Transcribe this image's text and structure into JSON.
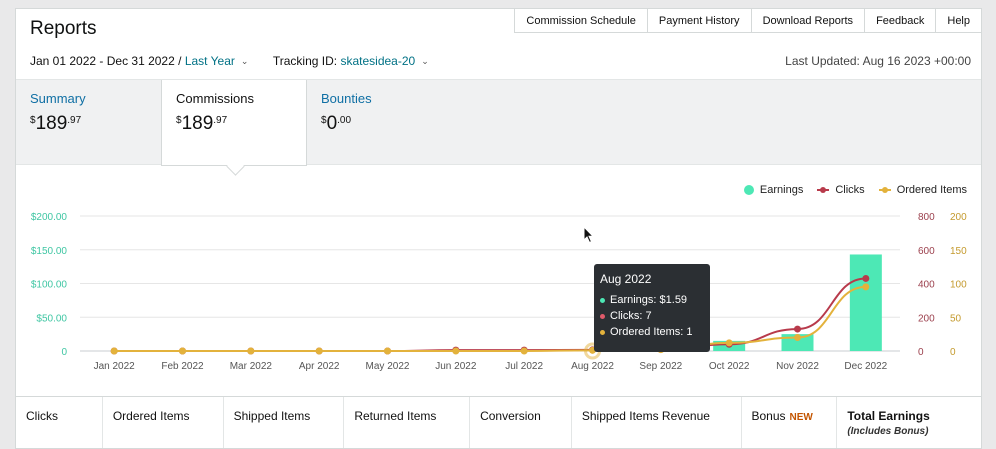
{
  "header": {
    "title": "Reports",
    "nav": [
      "Commission Schedule",
      "Payment History",
      "Download Reports",
      "Feedback",
      "Help"
    ]
  },
  "filters": {
    "date_range": "Jan 01 2022 - Dec 31 2022",
    "separator": "/",
    "period": "Last Year",
    "tracking_label": "Tracking ID:",
    "tracking_id": "skatesidea-20"
  },
  "last_updated": "Last Updated: Aug 16 2023 +00:00",
  "tabs": [
    {
      "label": "Summary",
      "dollar": "$",
      "whole": "189",
      "cents": ".97",
      "active": false
    },
    {
      "label": "Commissions",
      "dollar": "$",
      "whole": "189",
      "cents": ".97",
      "active": true
    },
    {
      "label": "Bounties",
      "dollar": "$",
      "whole": "0",
      "cents": ".00",
      "active": false
    }
  ],
  "legend": {
    "earnings": "Earnings",
    "clicks": "Clicks",
    "ordered": "Ordered Items"
  },
  "colors": {
    "earnings": "#4de8b5",
    "clicks": "#b83a4b",
    "ordered": "#e3b23c",
    "link": "#007185"
  },
  "chart_data": {
    "type": "bar",
    "categories": [
      "Jan 2022",
      "Feb 2022",
      "Mar 2022",
      "Apr 2022",
      "May 2022",
      "Jun 2022",
      "Jul 2022",
      "Aug 2022",
      "Sep 2022",
      "Oct 2022",
      "Nov 2022",
      "Dec 2022"
    ],
    "y_left_ticks": [
      "$200.00",
      "$150.00",
      "$100.00",
      "$50.00",
      "0"
    ],
    "y_mid_ticks": [
      "800",
      "600",
      "400",
      "200",
      "0"
    ],
    "y_right_ticks": [
      "200",
      "150",
      "100",
      "50",
      "0"
    ],
    "series": [
      {
        "name": "Earnings",
        "type": "bar",
        "axis": "left",
        "values": [
          0,
          0,
          0,
          0,
          0,
          0,
          0,
          1.59,
          2,
          15,
          25,
          143
        ]
      },
      {
        "name": "Clicks",
        "type": "line",
        "axis": "mid",
        "values": [
          0,
          0,
          0,
          0,
          0,
          5,
          5,
          7,
          10,
          40,
          130,
          430
        ]
      },
      {
        "name": "Ordered Items",
        "type": "line",
        "axis": "right",
        "values": [
          0,
          0,
          0,
          0,
          0,
          0,
          0,
          1,
          2,
          12,
          20,
          95
        ]
      }
    ],
    "ylim_left": [
      0,
      200
    ],
    "ylim_mid": [
      0,
      800
    ],
    "ylim_right": [
      0,
      200
    ],
    "legend_position": "top-right"
  },
  "tooltip": {
    "title": "Aug 2022",
    "rows": [
      "Earnings: $1.59",
      "Clicks: 7",
      "Ordered Items: 1"
    ]
  },
  "table_columns": {
    "clicks": "Clicks",
    "ordered": "Ordered Items",
    "shipped": "Shipped Items",
    "returned": "Returned Items",
    "conversion": "Conversion",
    "revenue": "Shipped Items Revenue",
    "bonus": "Bonus",
    "bonus_badge": "NEW",
    "total": "Total Earnings",
    "total_sub": "(Includes Bonus)"
  }
}
